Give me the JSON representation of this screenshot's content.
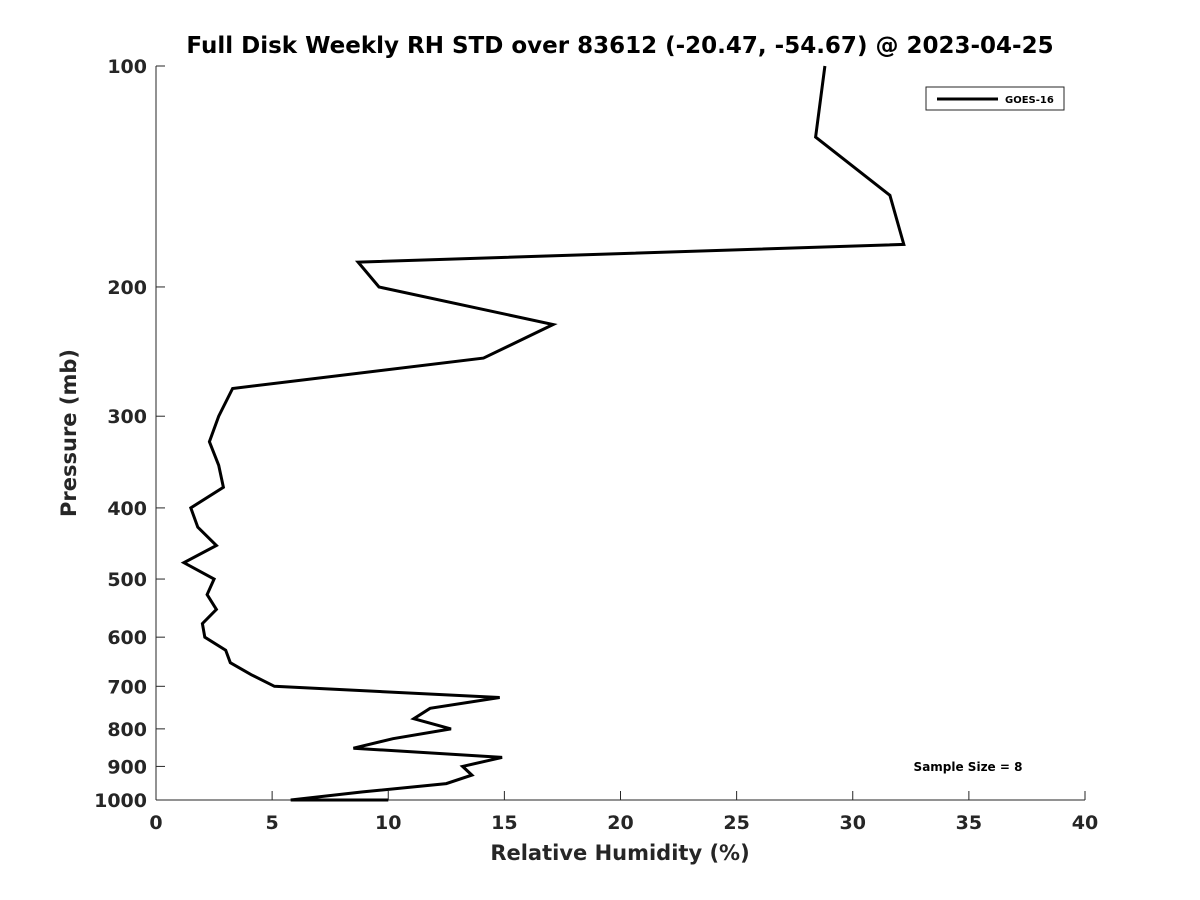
{
  "chart_data": {
    "type": "line",
    "title": "Full Disk Weekly RH STD over 83612 (-20.47, -54.67) @ 2023-04-25",
    "xlabel": "Relative Humidity (%)",
    "ylabel": "Pressure (mb)",
    "xlim": [
      0,
      40
    ],
    "ylim": [
      100,
      1000
    ],
    "yscale": "log",
    "y_reversed": true,
    "grid": false,
    "xticks": [
      0,
      5,
      10,
      15,
      20,
      25,
      30,
      35,
      40
    ],
    "xtick_labels": [
      "0",
      "5",
      "10",
      "15",
      "20",
      "25",
      "30",
      "35",
      "40"
    ],
    "yticks": [
      100,
      200,
      300,
      400,
      500,
      600,
      700,
      800,
      900,
      1000
    ],
    "ytick_labels": [
      "100",
      "200",
      "300",
      "400",
      "500",
      "600",
      "700",
      "800",
      "900",
      "1000"
    ],
    "legend": {
      "entries": [
        "GOES-16"
      ],
      "location": "top-right"
    },
    "annotation": "Sample Size = 8",
    "series": [
      {
        "name": "GOES-16",
        "color": "#000000",
        "x": [
          28.8,
          28.4,
          31.6,
          32.2,
          8.7,
          9.6,
          17.1,
          14.1,
          3.3,
          2.7,
          2.3,
          2.7,
          2.9,
          1.5,
          1.8,
          2.6,
          1.2,
          2.5,
          2.2,
          2.6,
          2.0,
          2.1,
          3.0,
          3.2,
          4.1,
          5.1,
          14.8,
          11.8,
          11.1,
          12.7,
          10.2,
          8.5,
          14.9,
          13.2,
          13.6,
          12.5,
          8.9,
          5.8,
          10.0
        ],
        "y": [
          100,
          125,
          150,
          175,
          185,
          200,
          225,
          250,
          275,
          300,
          325,
          350,
          375,
          400,
          425,
          450,
          475,
          500,
          525,
          550,
          575,
          600,
          625,
          650,
          675,
          700,
          725,
          750,
          775,
          800,
          825,
          850,
          875,
          900,
          925,
          950,
          975,
          1000,
          1000
        ]
      }
    ]
  }
}
